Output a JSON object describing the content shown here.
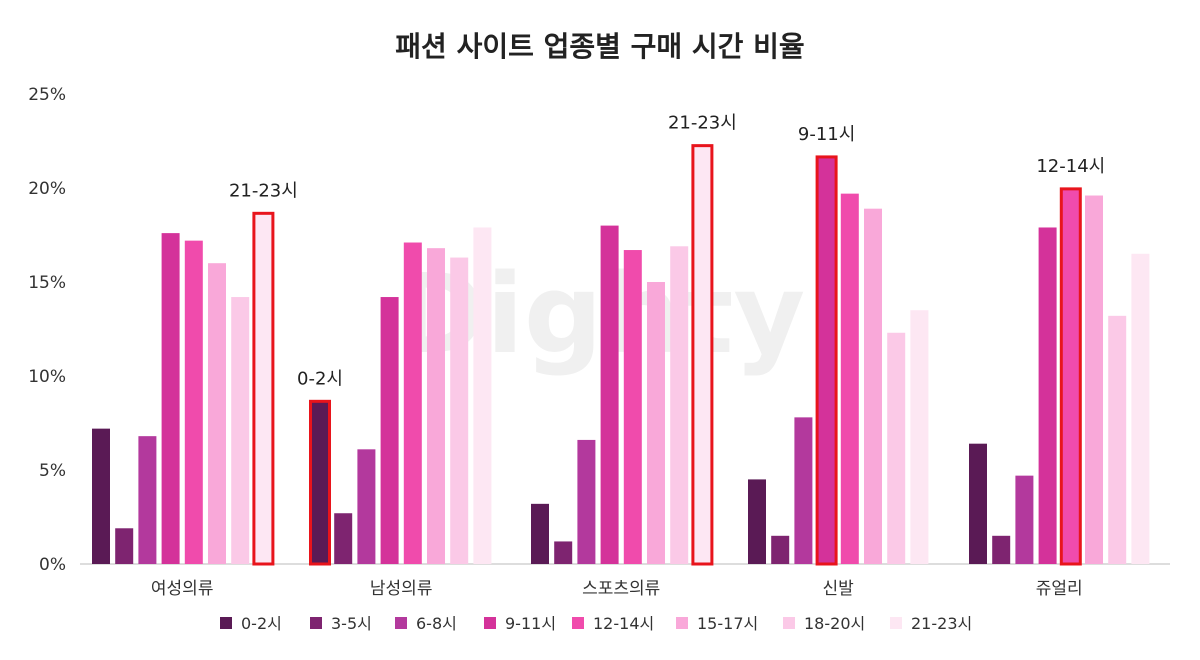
{
  "chart_data": {
    "type": "bar",
    "title": "패션 사이트 업종별 구매 시간 비율",
    "watermark": "Dighty",
    "categories": [
      "여성의류",
      "남성의류",
      "스포츠의류",
      "신발",
      "쥬얼리"
    ],
    "yticks": [
      "0%",
      "5%",
      "10%",
      "15%",
      "20%",
      "25%"
    ],
    "ylim": [
      0,
      25
    ],
    "series": [
      {
        "name": "0-2시",
        "color": "#5a1a55",
        "values": [
          7.2,
          8.6,
          3.2,
          4.5,
          6.4
        ]
      },
      {
        "name": "3-5시",
        "color": "#7e2470",
        "values": [
          1.9,
          2.7,
          1.2,
          1.5,
          1.5
        ]
      },
      {
        "name": "6-8시",
        "color": "#b3399d",
        "values": [
          6.8,
          6.1,
          6.6,
          7.8,
          4.7
        ]
      },
      {
        "name": "9-11시",
        "color": "#d4329a",
        "values": [
          17.6,
          14.2,
          18.0,
          21.6,
          17.9
        ]
      },
      {
        "name": "12-14시",
        "color": "#f04bac",
        "values": [
          17.2,
          17.1,
          16.7,
          19.7,
          19.9
        ]
      },
      {
        "name": "15-17시",
        "color": "#f9a8d9",
        "values": [
          16.0,
          16.8,
          15.0,
          18.9,
          19.6
        ]
      },
      {
        "name": "18-20시",
        "color": "#fbc9e7",
        "values": [
          14.2,
          16.3,
          16.9,
          12.3,
          13.2
        ]
      },
      {
        "name": "21-23시",
        "color": "#fde7f3",
        "values": [
          18.6,
          17.9,
          22.2,
          13.5,
          16.5
        ]
      }
    ],
    "highlights": [
      {
        "category": 0,
        "series": 7,
        "label": "21-23시"
      },
      {
        "category": 1,
        "series": 0,
        "label": "0-2시"
      },
      {
        "category": 2,
        "series": 7,
        "label": "21-23시"
      },
      {
        "category": 3,
        "series": 3,
        "label": "9-11시"
      },
      {
        "category": 4,
        "series": 4,
        "label": "12-14시"
      }
    ],
    "highlight_color": "#e8141c",
    "legend_position": "bottom"
  }
}
